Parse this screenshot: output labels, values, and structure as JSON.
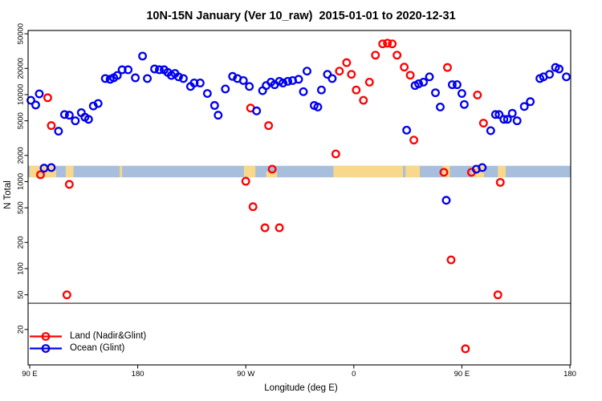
{
  "title": "10N-15N January (Ver 10_raw)  2015-01-01 to 2020-12-31",
  "chart_data": {
    "type": "scatter",
    "title": "10N-15N January (Ver 10_raw)  2015-01-01 to 2020-12-31",
    "xlabel": "Longitude (deg E)",
    "ylabel": "N Total",
    "x_axis": {
      "range_deg": [
        90,
        540
      ],
      "ticks": [
        {
          "value": 90,
          "label": "90 E"
        },
        {
          "value": 180,
          "label": "180"
        },
        {
          "value": 270,
          "label": "90 W"
        },
        {
          "value": 360,
          "label": "0"
        },
        {
          "value": 450,
          "label": "90 E"
        },
        {
          "value": 540,
          "label": "180"
        }
      ]
    },
    "y_axis": {
      "scale": "log",
      "range": [
        8,
        54000
      ],
      "ticks": [
        20,
        50,
        100,
        200,
        500,
        1000,
        2000,
        5000,
        10000,
        20000,
        50000
      ]
    },
    "grid": false,
    "threshold_line_value": 40,
    "map_band": {
      "description": "latitude-strip map: ocean blue band with tan land patches",
      "value_range": [
        1120,
        1520
      ],
      "ocean_color": "#a8bedd",
      "land_color": "#f8d88a",
      "land_patches": [
        {
          "lon": [
            90,
            112
          ]
        },
        {
          "lon": [
            120,
            126.5
          ]
        },
        {
          "lon": [
            165,
            167
          ]
        },
        {
          "lon": [
            268.5,
            278
          ]
        },
        {
          "lon": [
            287,
            296
          ],
          "half": "lower"
        },
        {
          "lon": [
            343,
            401
          ]
        },
        {
          "lon": [
            403,
            415
          ]
        },
        {
          "lon": [
            434,
            440
          ]
        },
        {
          "lon": [
            458,
            468.5
          ]
        },
        {
          "lon": [
            480,
            486.5
          ]
        }
      ]
    },
    "legend_position": "bottom-left",
    "series": [
      {
        "id": "land",
        "name": "Land (Nadir&Glint)",
        "color": "#ff0000",
        "points": [
          [
            99,
            1200
          ],
          [
            105,
            9200
          ],
          [
            108,
            4400
          ],
          [
            121,
            50
          ],
          [
            123,
            930
          ],
          [
            270,
            1010
          ],
          [
            274,
            7000
          ],
          [
            276,
            515
          ],
          [
            286,
            295
          ],
          [
            289,
            4400
          ],
          [
            292,
            1390
          ],
          [
            298,
            295
          ],
          [
            345,
            2080
          ],
          [
            348,
            18600
          ],
          [
            354,
            23300
          ],
          [
            358,
            17100
          ],
          [
            362,
            11300
          ],
          [
            368,
            8600
          ],
          [
            373,
            13900
          ],
          [
            378,
            28400
          ],
          [
            384,
            38300
          ],
          [
            388,
            39000
          ],
          [
            392,
            38300
          ],
          [
            396,
            28400
          ],
          [
            402,
            20700
          ],
          [
            407,
            16700
          ],
          [
            410,
            3000
          ],
          [
            435,
            1280
          ],
          [
            438,
            20500
          ],
          [
            441,
            126
          ],
          [
            453,
            12
          ],
          [
            458,
            1280
          ],
          [
            463,
            9900
          ],
          [
            468,
            4700
          ],
          [
            480,
            50
          ],
          [
            482,
            980
          ]
        ]
      },
      {
        "id": "ocean",
        "name": "Ocean (Glint)",
        "color": "#0000ee",
        "points": [
          [
            91,
            8600
          ],
          [
            95,
            7600
          ],
          [
            98,
            10200
          ],
          [
            102,
            1430
          ],
          [
            108,
            1450
          ],
          [
            114,
            3800
          ],
          [
            119,
            5900
          ],
          [
            123,
            5800
          ],
          [
            128,
            5000
          ],
          [
            133,
            6200
          ],
          [
            136,
            5500
          ],
          [
            139,
            5200
          ],
          [
            143,
            7400
          ],
          [
            147,
            7900
          ],
          [
            153,
            15300
          ],
          [
            157,
            15000
          ],
          [
            160,
            15600
          ],
          [
            163,
            16600
          ],
          [
            167,
            19300
          ],
          [
            172,
            19300
          ],
          [
            178,
            15600
          ],
          [
            184,
            27700
          ],
          [
            188,
            15300
          ],
          [
            194,
            19700
          ],
          [
            198,
            19300
          ],
          [
            202,
            19300
          ],
          [
            205,
            18000
          ],
          [
            208,
            16600
          ],
          [
            211,
            17500
          ],
          [
            214,
            16000
          ],
          [
            218,
            15300
          ],
          [
            224,
            12400
          ],
          [
            227,
            13600
          ],
          [
            232,
            13600
          ],
          [
            238,
            10300
          ],
          [
            244,
            7500
          ],
          [
            247,
            5800
          ],
          [
            253,
            11600
          ],
          [
            259,
            16200
          ],
          [
            263,
            15300
          ],
          [
            268,
            14500
          ],
          [
            273,
            12400
          ],
          [
            279,
            6500
          ],
          [
            284,
            11100
          ],
          [
            287,
            12700
          ],
          [
            291,
            13900
          ],
          [
            294,
            13000
          ],
          [
            298,
            14200
          ],
          [
            301,
            13600
          ],
          [
            305,
            14200
          ],
          [
            309,
            14500
          ],
          [
            314,
            15000
          ],
          [
            318,
            10800
          ],
          [
            321,
            18600
          ],
          [
            327,
            7500
          ],
          [
            330,
            7200
          ],
          [
            333,
            11300
          ],
          [
            338,
            17100
          ],
          [
            342,
            15300
          ],
          [
            404,
            3900
          ],
          [
            411,
            12700
          ],
          [
            414,
            13300
          ],
          [
            418,
            13900
          ],
          [
            423,
            16000
          ],
          [
            428,
            10500
          ],
          [
            432,
            7200
          ],
          [
            437,
            610
          ],
          [
            442,
            13000
          ],
          [
            446,
            13000
          ],
          [
            450,
            10300
          ],
          [
            452,
            7700
          ],
          [
            462,
            1390
          ],
          [
            467,
            1450
          ],
          [
            474,
            3850
          ],
          [
            478,
            5900
          ],
          [
            481,
            5900
          ],
          [
            485,
            5200
          ],
          [
            488,
            5200
          ],
          [
            492,
            6100
          ],
          [
            496,
            5000
          ],
          [
            502,
            7300
          ],
          [
            507,
            8300
          ],
          [
            515,
            15300
          ],
          [
            518,
            16000
          ],
          [
            523,
            17100
          ],
          [
            528,
            20500
          ],
          [
            531,
            19700
          ],
          [
            537,
            16000
          ]
        ]
      }
    ]
  }
}
